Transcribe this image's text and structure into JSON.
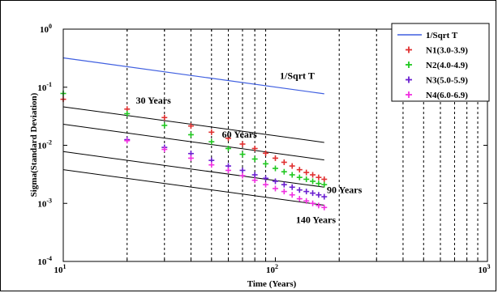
{
  "chart_data": {
    "type": "scatter",
    "xscale": "log",
    "yscale": "log",
    "xlim": [
      10,
      1000
    ],
    "ylim": [
      0.0001,
      1
    ],
    "xlabel": "Time (Years)",
    "ylabel": "Sigma(Standard Deviation)",
    "x_ticks": [
      {
        "value": 10,
        "base": "10",
        "exp": "1"
      },
      {
        "value": 100,
        "base": "10",
        "exp": "2"
      },
      {
        "value": 1000,
        "base": "10",
        "exp": "3"
      }
    ],
    "y_ticks": [
      {
        "value": 0.0001,
        "base": "10",
        "exp": "-4"
      },
      {
        "value": 0.001,
        "base": "10",
        "exp": "-3"
      },
      {
        "value": 0.01,
        "base": "10",
        "exp": "-2"
      },
      {
        "value": 0.1,
        "base": "10",
        "exp": "-1"
      },
      {
        "value": 1,
        "base": "10",
        "exp": "0"
      }
    ],
    "vertical_gridlines_x": [
      20,
      30,
      40,
      50,
      60,
      70,
      80,
      90,
      200,
      300,
      400,
      500,
      600,
      700,
      800,
      900
    ],
    "grid": "x-only dotted",
    "legend_position": "top-right",
    "reference_line": {
      "name": "1/Sqrt T",
      "color": "#3f5fe0",
      "x": [
        10,
        170
      ],
      "y": [
        0.32,
        0.077
      ]
    },
    "fit_lines": [
      {
        "x": [
          10,
          170
        ],
        "y": [
          0.046,
          0.0112
        ]
      },
      {
        "x": [
          10,
          170
        ],
        "y": [
          0.023,
          0.0056
        ]
      },
      {
        "x": [
          10,
          170
        ],
        "y": [
          0.0078,
          0.0019
        ]
      },
      {
        "x": [
          10,
          170
        ],
        "y": [
          0.0038,
          0.00093
        ]
      }
    ],
    "series": [
      {
        "name": "N1(3.0-3.9)",
        "color": "#e03030",
        "marker": "+",
        "x": [
          10,
          20,
          30,
          40,
          50,
          60,
          70,
          80,
          90,
          100,
          110,
          120,
          130,
          140,
          150,
          160,
          170
        ],
        "y": [
          0.062,
          0.042,
          0.03,
          0.0215,
          0.0168,
          0.0132,
          0.0105,
          0.0088,
          0.0073,
          0.006,
          0.0051,
          0.0044,
          0.0038,
          0.0034,
          0.0031,
          0.0028,
          0.0026
        ]
      },
      {
        "name": "N2(4.0-4.9)",
        "color": "#20c820",
        "marker": "+",
        "x": [
          10,
          20,
          30,
          40,
          50,
          60,
          70,
          80,
          90,
          100,
          110,
          120,
          130,
          140,
          150,
          160,
          170
        ],
        "y": [
          0.078,
          0.035,
          0.022,
          0.0152,
          0.0115,
          0.0088,
          0.007,
          0.0058,
          0.0048,
          0.004,
          0.0035,
          0.0031,
          0.0028,
          0.0026,
          0.0024,
          0.0022,
          0.0021
        ]
      },
      {
        "name": "N3(5.0-5.9)",
        "color": "#6a1fd0",
        "marker": "+",
        "x": [
          20,
          30,
          40,
          50,
          60,
          70,
          80,
          90,
          100,
          110,
          120,
          130,
          140,
          150,
          160,
          170
        ],
        "y": [
          0.0125,
          0.0092,
          0.0072,
          0.0055,
          0.0044,
          0.0037,
          0.0031,
          0.0027,
          0.0024,
          0.0021,
          0.0019,
          0.0017,
          0.0016,
          0.0015,
          0.0014,
          0.0013
        ]
      },
      {
        "name": "N4(6.0-6.9)",
        "color": "#f030e0",
        "marker": "+",
        "x": [
          20,
          30,
          40,
          50,
          60,
          70,
          80,
          90,
          100,
          110,
          120,
          130,
          140,
          150,
          160,
          170
        ],
        "y": [
          0.012,
          0.0085,
          0.006,
          0.0046,
          0.0037,
          0.003,
          0.0025,
          0.0021,
          0.0018,
          0.0016,
          0.0014,
          0.0012,
          0.0011,
          0.001,
          0.00092,
          0.00085
        ]
      }
    ],
    "annotations": [
      {
        "text": "1/Sqrt T",
        "x": 105,
        "y": 0.14
      },
      {
        "text": "30 Years",
        "x": 22,
        "y": 0.052
      },
      {
        "text": "60 Years",
        "x": 56,
        "y": 0.0135
      },
      {
        "text": "90 Years",
        "x": 175,
        "y": 0.0015
      },
      {
        "text": "140 Years",
        "x": 125,
        "y": 0.00046
      }
    ]
  }
}
